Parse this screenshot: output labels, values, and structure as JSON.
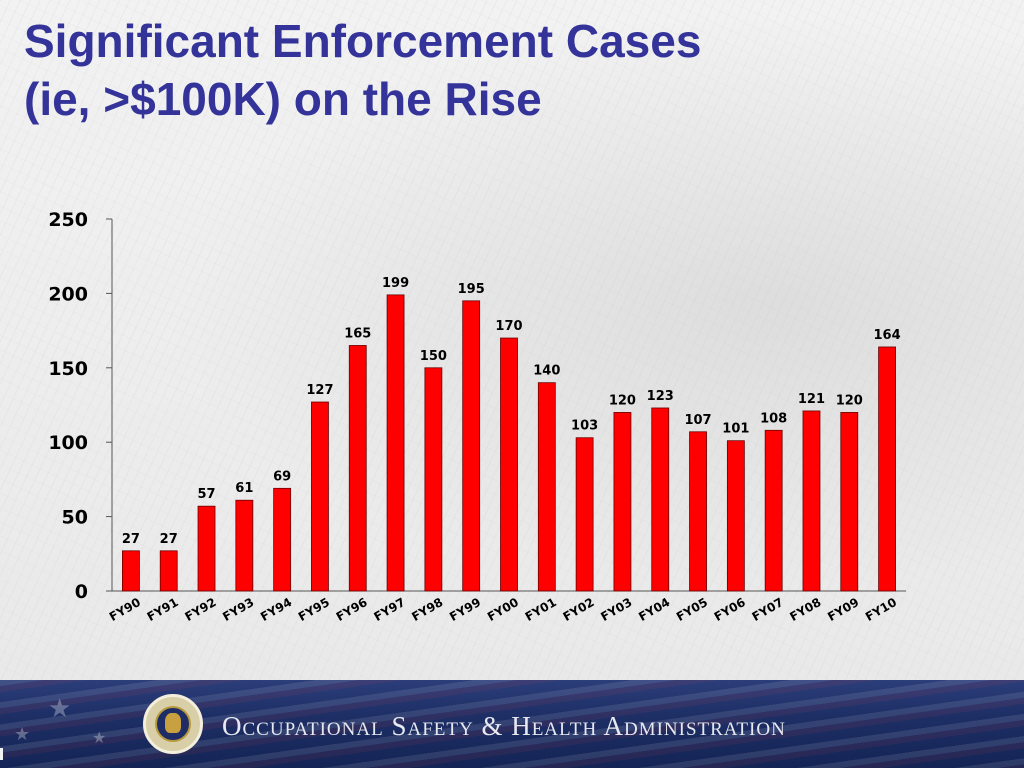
{
  "slide": {
    "title_line1": "Significant Enforcement Cases",
    "title_line2": "(ie, >$100K) on the Rise"
  },
  "footer": {
    "agency_name": "Occupational Safety & Health Administration",
    "seal_icon": "dol-seal-icon"
  },
  "colors": {
    "title": "#33339a",
    "bar": "#ff0000",
    "footer_bg": "#1e2f66"
  },
  "chart_data": {
    "type": "bar",
    "categories": [
      "FY90",
      "FY91",
      "FY92",
      "FY93",
      "FY94",
      "FY95",
      "FY96",
      "FY97",
      "FY98",
      "FY99",
      "FY00",
      "FY01",
      "FY02",
      "FY03",
      "FY04",
      "FY05",
      "FY06",
      "FY07",
      "FY08",
      "FY09",
      "FY10"
    ],
    "values": [
      27,
      27,
      57,
      61,
      69,
      127,
      165,
      199,
      150,
      195,
      170,
      140,
      103,
      120,
      123,
      107,
      101,
      108,
      121,
      120,
      164
    ],
    "ylim": [
      0,
      250
    ],
    "yticks": [
      0,
      50,
      100,
      150,
      200,
      250
    ],
    "data_labels": [
      "27",
      "27",
      "57",
      "61",
      "69",
      "127",
      "165",
      "199",
      "150",
      "195",
      "170",
      "140",
      "103",
      "120",
      "123",
      "107",
      "101",
      "108",
      "121",
      "120",
      "164"
    ],
    "title": "",
    "xlabel": "",
    "ylabel": "",
    "grid": false,
    "legend": "none",
    "bar_color": "#ff0000"
  }
}
